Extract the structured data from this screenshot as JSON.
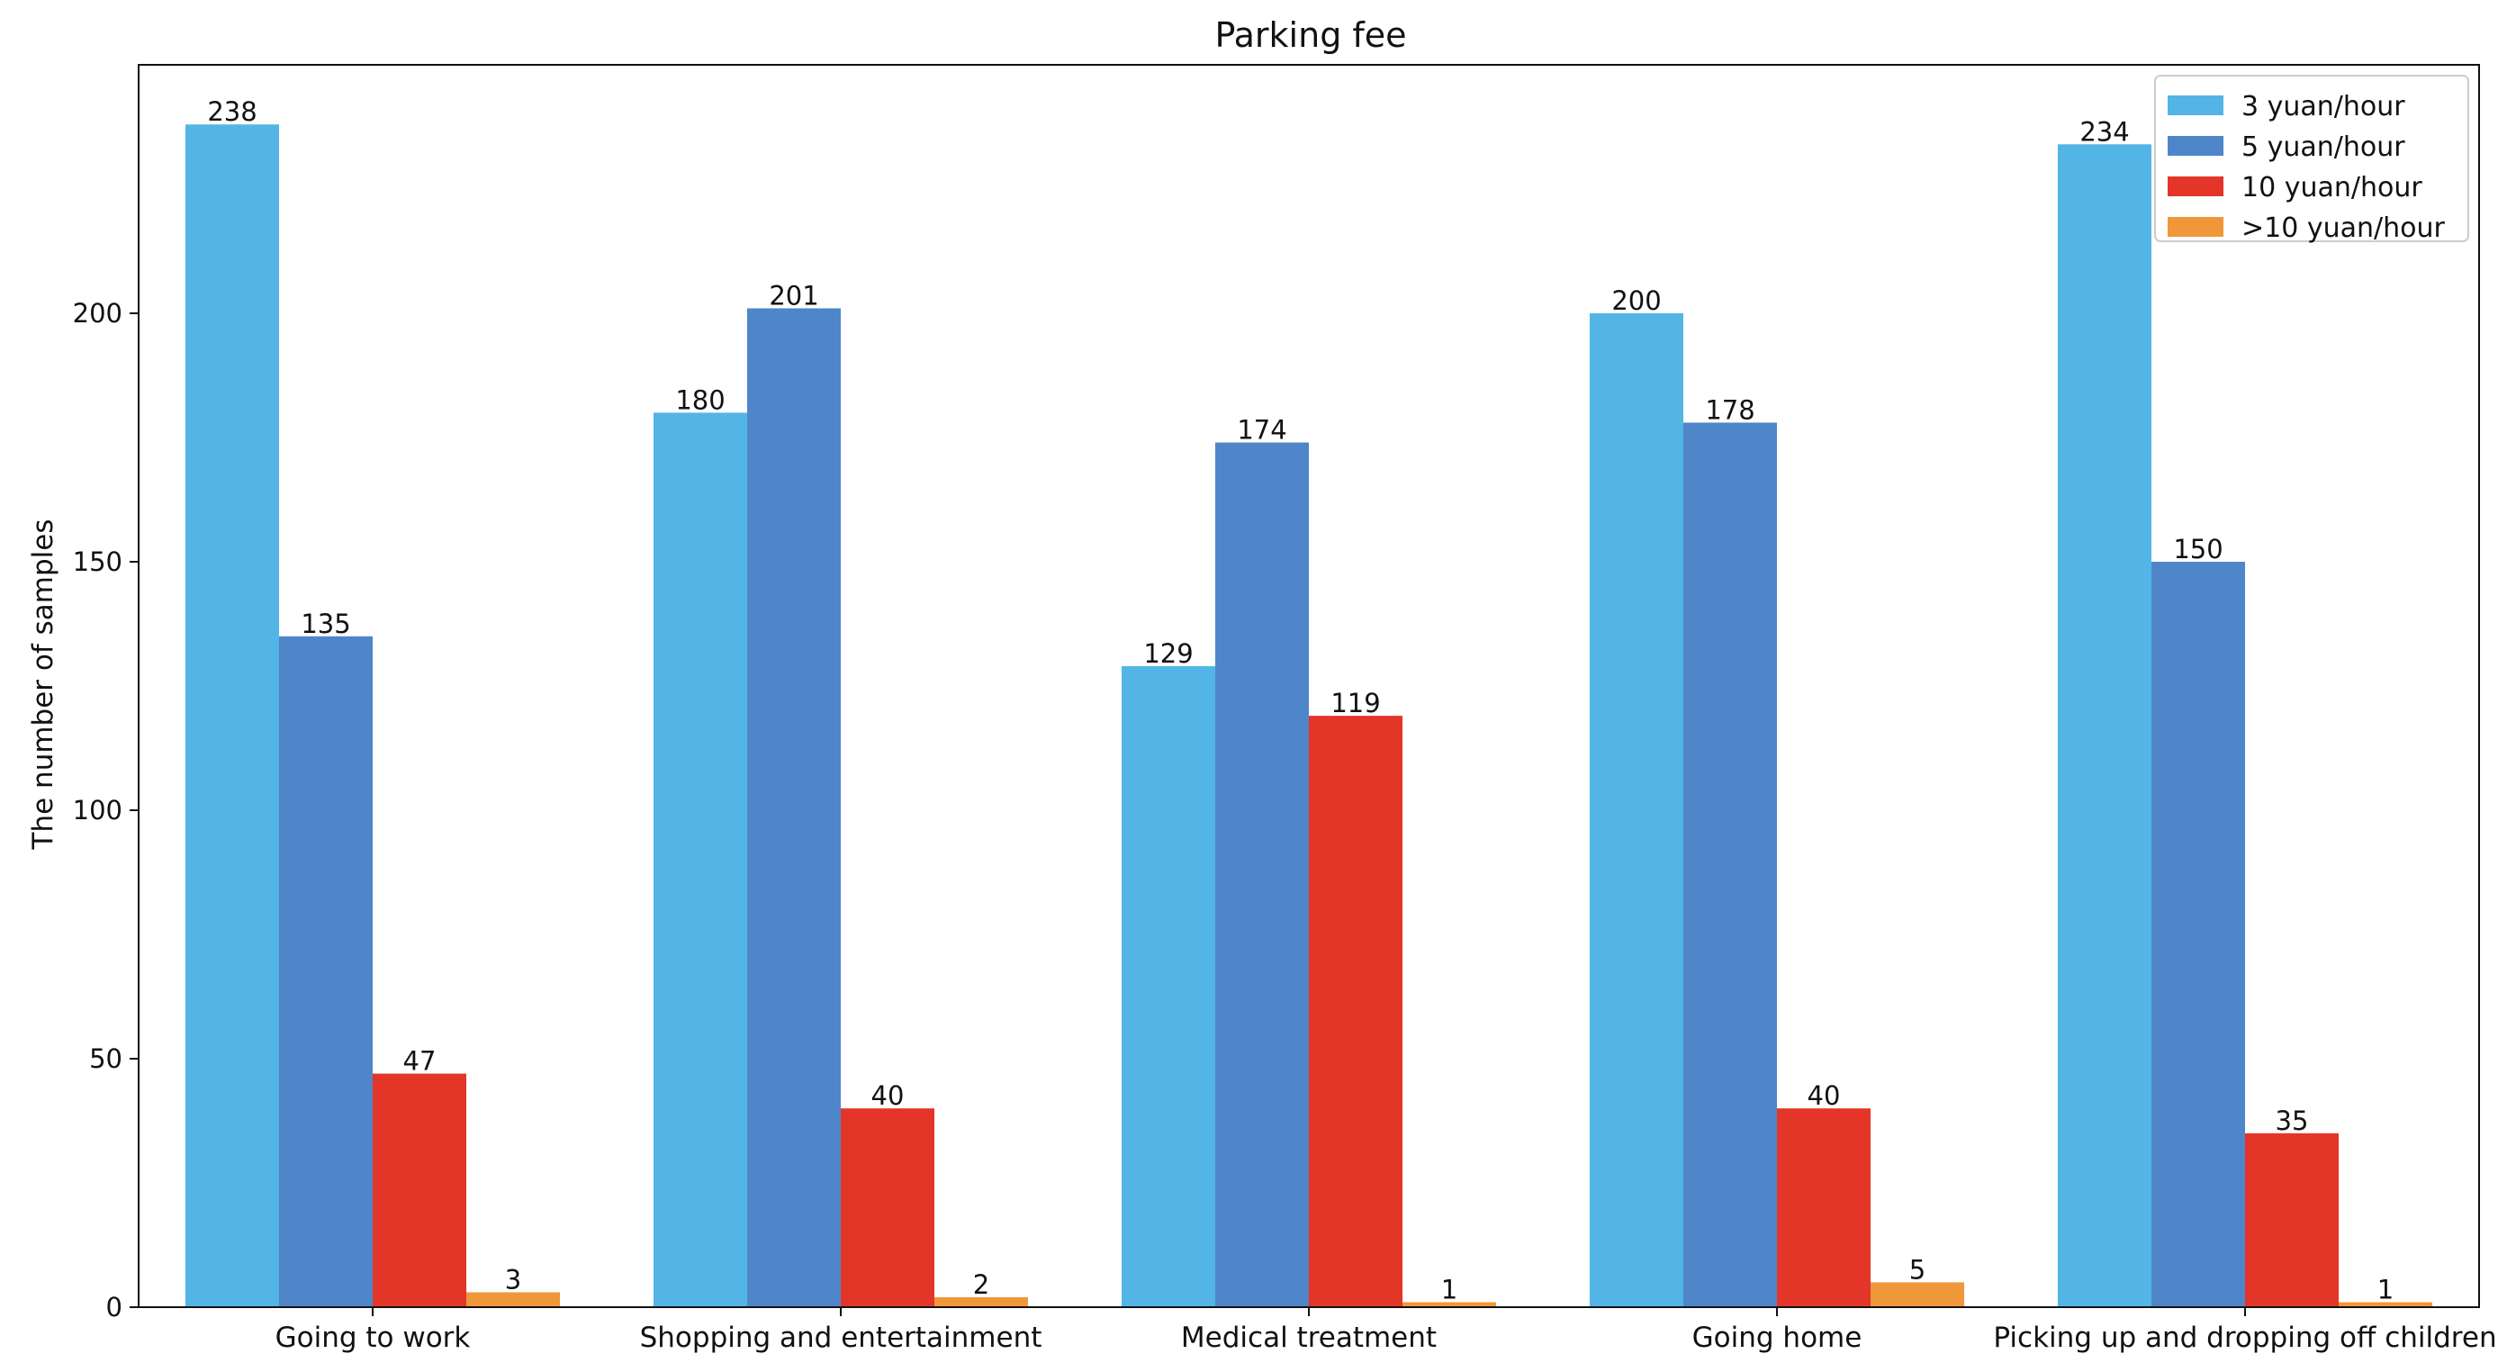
{
  "chart_data": {
    "type": "bar",
    "title": "Parking fee",
    "xlabel": "",
    "ylabel": "The number of samples",
    "ylim": [
      0,
      250
    ],
    "yticks": [
      0,
      50,
      100,
      150,
      200
    ],
    "categories": [
      "Going to work",
      "Shopping and entertainment",
      "Medical treatment",
      "Going home",
      "Picking up and dropping off children"
    ],
    "series": [
      {
        "name": "3 yuan/hour",
        "color": "#53B5E6",
        "values": [
          238,
          180,
          129,
          200,
          234
        ]
      },
      {
        "name": "5 yuan/hour",
        "color": "#4F86C9",
        "values": [
          135,
          201,
          174,
          178,
          150
        ]
      },
      {
        "name": "10 yuan/hour",
        "color": "#E33528",
        "values": [
          47,
          40,
          119,
          40,
          35
        ]
      },
      {
        "name": ">10 yuan/hour",
        "color": "#F0973A",
        "values": [
          3,
          2,
          1,
          5,
          1
        ]
      }
    ],
    "legend_position": "top-right",
    "grid": false
  }
}
